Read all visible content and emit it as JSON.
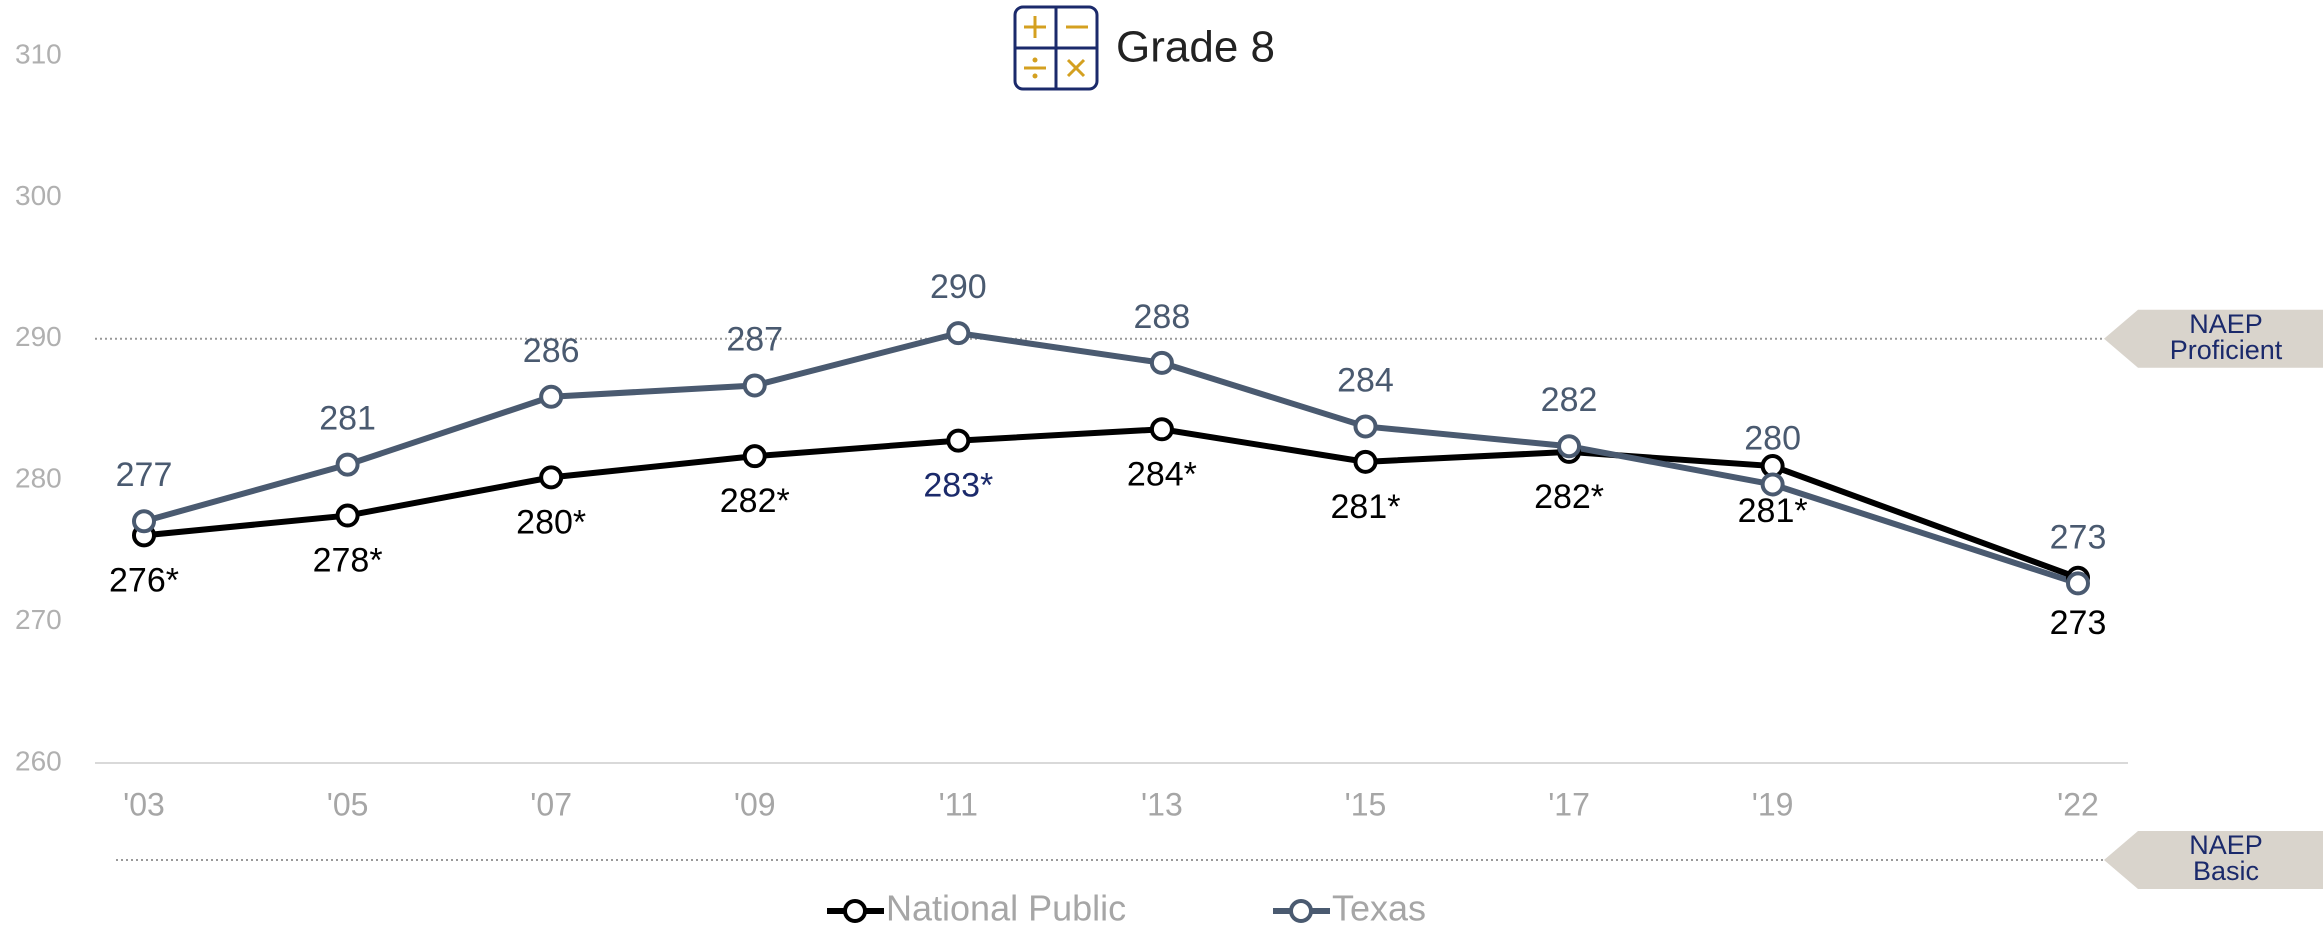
{
  "chart_data": {
    "type": "line",
    "title": "Grade 8",
    "x": [
      2003,
      2005,
      2007,
      2009,
      2011,
      2013,
      2015,
      2017,
      2019,
      2022
    ],
    "xticks": [
      {
        "value": 2003,
        "label": "'03"
      },
      {
        "value": 2005,
        "label": "'05"
      },
      {
        "value": 2007,
        "label": "'07"
      },
      {
        "value": 2009,
        "label": "'09"
      },
      {
        "value": 2011,
        "label": "'11"
      },
      {
        "value": 2013,
        "label": "'13"
      },
      {
        "value": 2015,
        "label": "'15"
      },
      {
        "value": 2017,
        "label": "'17"
      },
      {
        "value": 2019,
        "label": "'19"
      },
      {
        "value": 2022,
        "label": "'22"
      }
    ],
    "xlim": [
      2002.5,
      2022.5
    ],
    "ylim": [
      260,
      310
    ],
    "yticks": [
      260,
      270,
      280,
      290,
      300,
      310
    ],
    "series": [
      {
        "name": "National Public",
        "color": "#000000",
        "values": [
          276.1,
          277.5,
          280.2,
          281.7,
          282.8,
          283.6,
          281.3,
          282.0,
          281.0,
          273.1
        ],
        "value_labels": [
          "276*",
          "278*",
          "280*",
          "282*",
          "283*",
          "284*",
          "281*",
          "282*",
          "281*",
          "273"
        ],
        "value_label_colors": [
          "#000000",
          "#000000",
          "#000000",
          "#000000",
          "#1b2a6b",
          "#000000",
          "#000000",
          "#000000",
          "#000000",
          "#000000"
        ]
      },
      {
        "name": "Texas",
        "color": "#4a5a70",
        "values": [
          277.1,
          281.1,
          285.9,
          286.7,
          290.4,
          288.3,
          283.8,
          282.4,
          279.7,
          272.7
        ],
        "value_labels": [
          "277",
          "281",
          "286",
          "287",
          "290",
          "288",
          "284",
          "282",
          "280",
          "273"
        ]
      }
    ],
    "reference_lines": [
      {
        "value": 290,
        "lines": [
          "NAEP",
          "Proficient"
        ]
      }
    ],
    "off_scale_reference": {
      "lines": [
        "NAEP",
        "Basic"
      ]
    }
  }
}
